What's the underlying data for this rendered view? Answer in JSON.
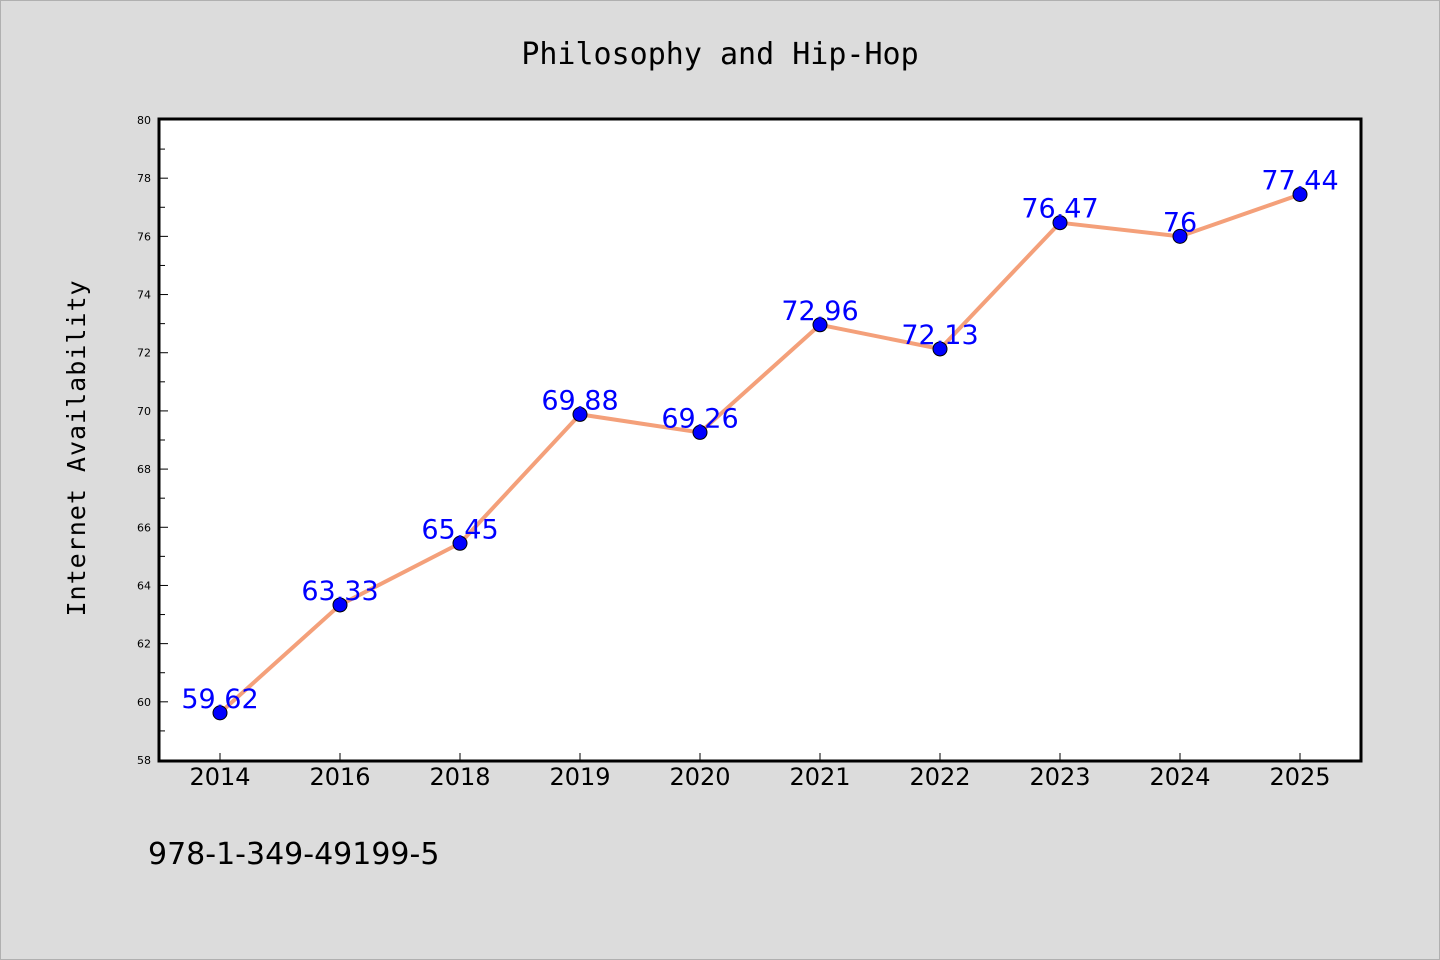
{
  "chart_data": {
    "type": "line",
    "title": "Philosophy and Hip-Hop",
    "xlabel": "",
    "ylabel": "Internet Availability",
    "categories": [
      "2014",
      "2016",
      "2018",
      "2019",
      "2020",
      "2021",
      "2022",
      "2023",
      "2024",
      "2025"
    ],
    "series": [
      {
        "values": [
          59.62,
          63.33,
          65.45,
          69.88,
          69.26,
          72.96,
          72.13,
          76.47,
          76,
          77.44
        ],
        "labels": [
          "59.62",
          "63.33",
          "65.45",
          "69.88",
          "69.26",
          "72.96",
          "72.13",
          "76.47",
          "76",
          "77.44"
        ],
        "line_color": "#f4a07a",
        "marker_color": "#0000ff"
      }
    ],
    "ylim": [
      58,
      80
    ],
    "yticks": [
      "58",
      "60",
      "62",
      "64",
      "66",
      "68",
      "70",
      "72",
      "74",
      "76",
      "78",
      "80"
    ],
    "grid": false,
    "legend": "none"
  },
  "footnote": "978-1-349-49199-5",
  "colors": {
    "background": "#dcdcdc",
    "plot_area": "#ffffff",
    "line": "#f4a07a",
    "marker": "#0000ff",
    "data_label": "#0000ff"
  }
}
